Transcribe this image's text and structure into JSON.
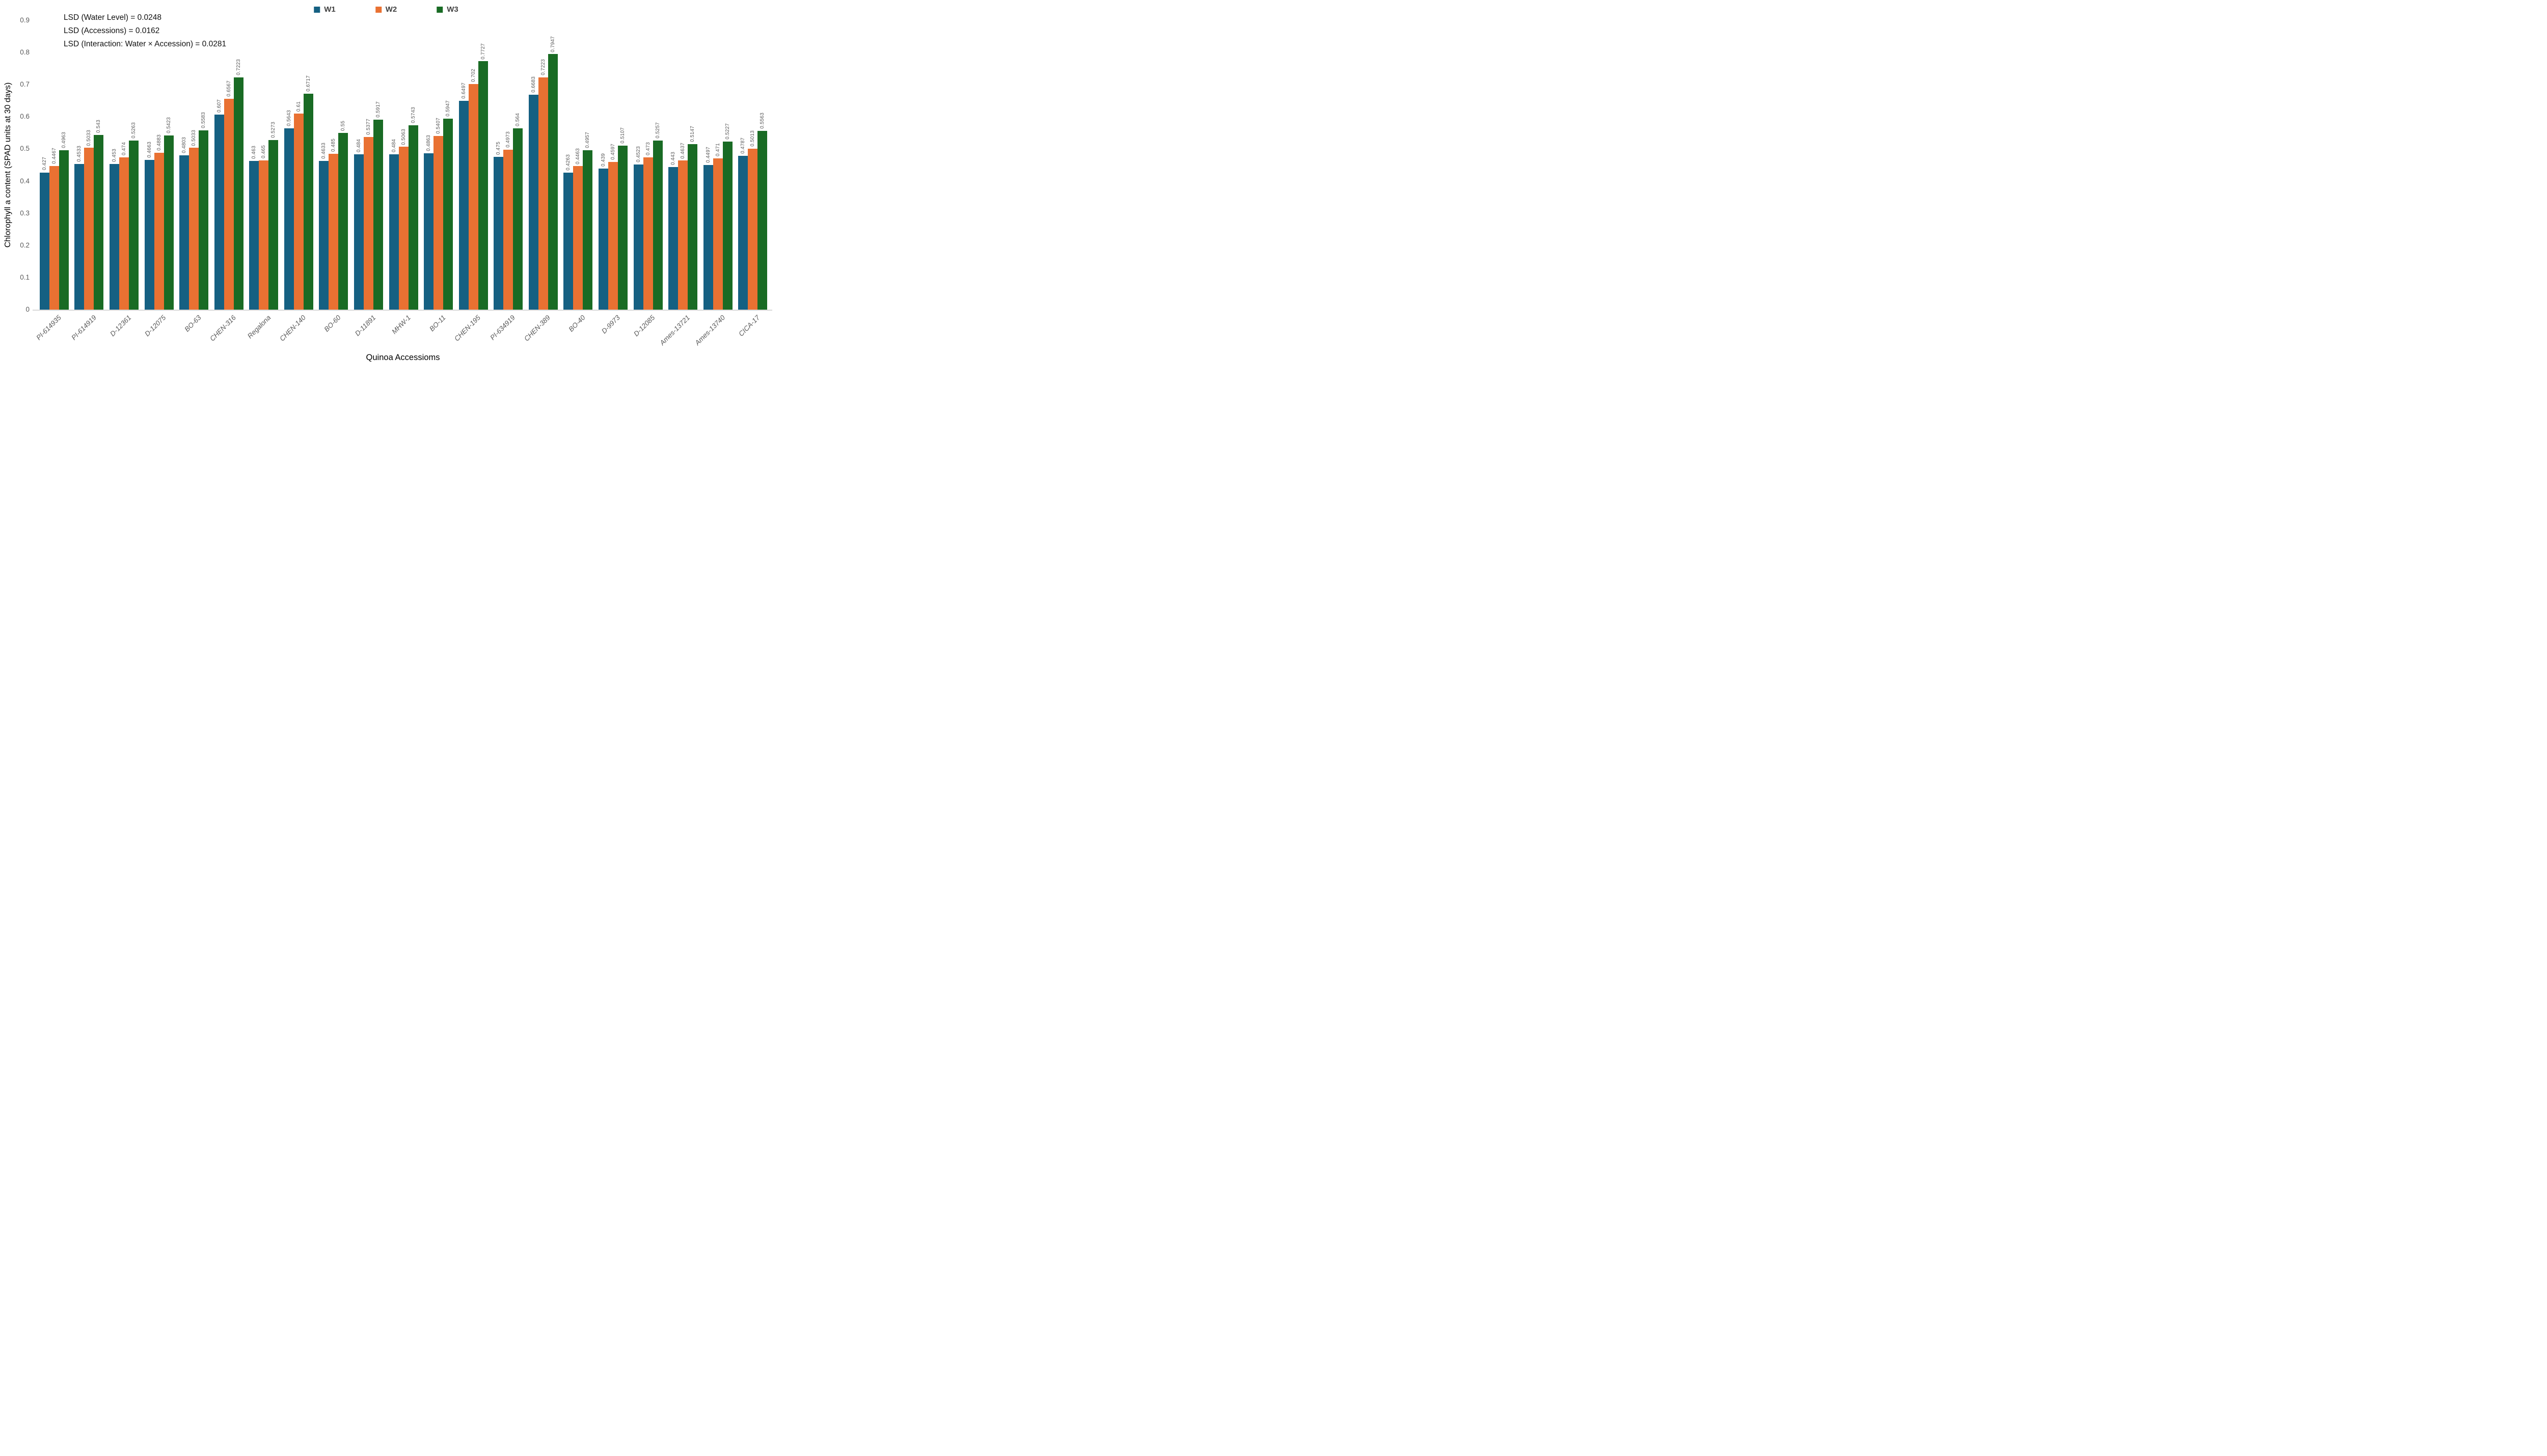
{
  "legend": {
    "items": [
      {
        "label": "W1",
        "color": "#156082"
      },
      {
        "label": "W2",
        "color": "#E97132"
      },
      {
        "label": "W3",
        "color": "#196B24"
      }
    ]
  },
  "annotations": {
    "lsd_lines": [
      "LSD (Water Level) = 0.0248",
      "LSD (Accessions) = 0.0162",
      "LSD (Interaction: Water × Accession) = 0.0281"
    ]
  },
  "y_axis": {
    "ticks": [
      "0",
      "0.1",
      "0.2",
      "0.3",
      "0.4",
      "0.5",
      "0.6",
      "0.7",
      "0.8",
      "0.9"
    ]
  },
  "colors": {
    "axis_line": "#d9d9d9",
    "tick_label": "#595959",
    "value_label": "#595959",
    "category_label": "#595959",
    "annotation_text": "#111111"
  },
  "chart_data": {
    "type": "bar",
    "title": "",
    "xlabel": "Quinoa Accessioms",
    "ylabel": "Chlorophyll a content (SPAD units at 30 days)",
    "ylim": [
      0,
      0.9
    ],
    "ytick_step": 0.1,
    "grid": false,
    "legend_position": "top-center",
    "data_labels": "rotated 90deg above bars",
    "categories": [
      "PI-614935",
      "PI-614919",
      "D-12361",
      "D-12075",
      "BO-63",
      "CHEN-316",
      "Regalona",
      "CHEN-140",
      "BO-60",
      "D-11891",
      "MHW-1",
      "BO-11",
      "CHEN-195",
      "PI-634919",
      "CHEN-389",
      "BO-40",
      "D-9973",
      "D-12085",
      "Ames-13721",
      "Ames-13740",
      "CICA-17"
    ],
    "series": [
      {
        "name": "W1",
        "color": "#156082",
        "values": [
          0.427,
          0.4533,
          0.453,
          0.4663,
          0.4803,
          0.607,
          0.463,
          0.5643,
          0.4633,
          0.484,
          0.484,
          0.4863,
          0.6497,
          0.475,
          0.6683,
          0.4263,
          0.439,
          0.4523,
          0.443,
          0.4497,
          0.4787
        ]
      },
      {
        "name": "W2",
        "color": "#E97132",
        "values": [
          0.4467,
          0.5033,
          0.474,
          0.4883,
          0.5033,
          0.6567,
          0.465,
          0.61,
          0.485,
          0.5377,
          0.5063,
          0.5407,
          0.702,
          0.4973,
          0.7223,
          0.4463,
          0.4597,
          0.473,
          0.4637,
          0.471,
          0.5013
        ]
      },
      {
        "name": "W3",
        "color": "#196B24",
        "values": [
          0.4963,
          0.543,
          0.5263,
          0.5423,
          0.5583,
          0.7223,
          0.5273,
          0.6717,
          0.55,
          0.5917,
          0.5743,
          0.5947,
          0.7727,
          0.564,
          0.7947,
          0.4957,
          0.5107,
          0.5257,
          0.5147,
          0.5227,
          0.5563
        ]
      }
    ]
  }
}
